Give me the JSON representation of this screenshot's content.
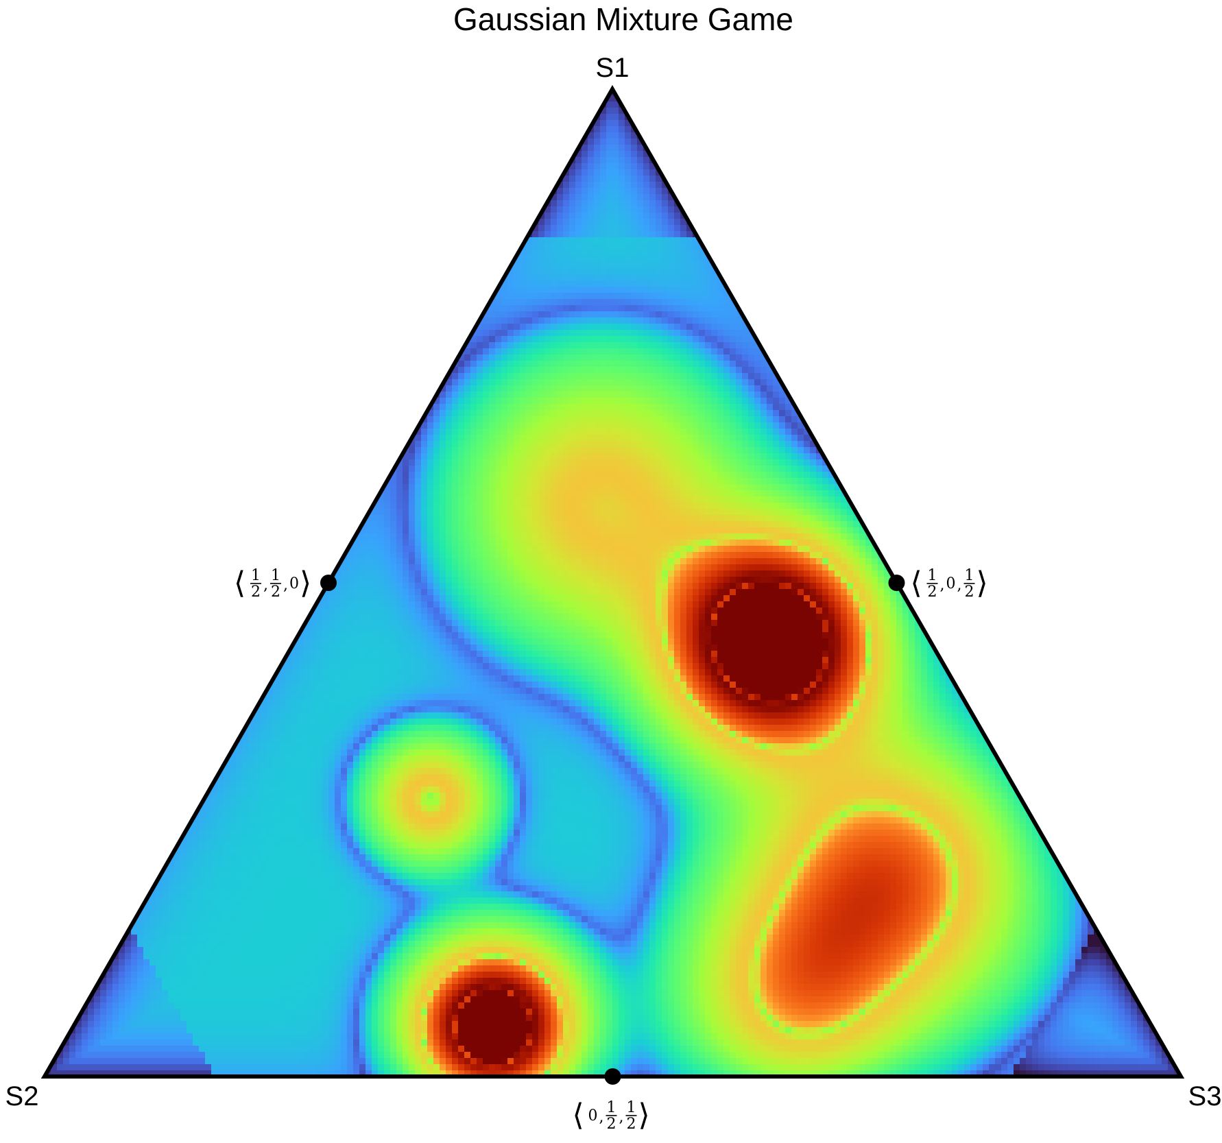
{
  "chart_data": {
    "type": "heatmap",
    "projection": "ternary simplex",
    "title": "Gaussian Mixture Game",
    "vertices": [
      {
        "key": "top",
        "label": "S1",
        "coords": [
          1,
          0,
          0
        ]
      },
      {
        "key": "left",
        "label": "S2",
        "coords": [
          0,
          1,
          0
        ]
      },
      {
        "key": "right",
        "label": "S3",
        "coords": [
          0,
          0,
          1
        ]
      }
    ],
    "marked_points": [
      {
        "key": "s1s2",
        "edge": "left",
        "coords": [
          "1/2",
          "1/2",
          "0"
        ]
      },
      {
        "key": "s1s3",
        "edge": "right",
        "coords": [
          "1/2",
          "0",
          "1/2"
        ]
      },
      {
        "key": "s2s3",
        "edge": "bottom",
        "coords": [
          "0",
          "1/2",
          "1/2"
        ]
      }
    ],
    "colormap": "turbo",
    "colormap_stops": [
      "#30123b",
      "#4145ab",
      "#4675ed",
      "#39a2fc",
      "#1bcfd4",
      "#24eca6",
      "#61fc6c",
      "#a4fc3b",
      "#d1e834",
      "#f3c63a",
      "#fe9b2d",
      "#f36315",
      "#d93806",
      "#b11901",
      "#7a0402"
    ],
    "field_components": [
      {
        "center": [
          0.44,
          0.14,
          0.42
        ],
        "sigma": 0.085,
        "weight": 1.0
      },
      {
        "center": [
          0.05,
          0.58,
          0.37
        ],
        "sigma": 0.065,
        "weight": 0.95
      },
      {
        "center": [
          0.2,
          0.16,
          0.64
        ],
        "sigma": 0.11,
        "weight": 0.5
      },
      {
        "center": [
          0.28,
          0.52,
          0.2
        ],
        "sigma": 0.05,
        "weight": 0.38
      },
      {
        "center": [
          0.58,
          0.22,
          0.2
        ],
        "sigma": 0.11,
        "weight": 0.35
      },
      {
        "center": [
          0.08,
          0.3,
          0.62
        ],
        "sigma": 0.09,
        "weight": 0.35
      }
    ],
    "field_baseline": 0.32,
    "field_range": [
      0,
      1
    ],
    "border_color": "#000000",
    "grid": false
  }
}
